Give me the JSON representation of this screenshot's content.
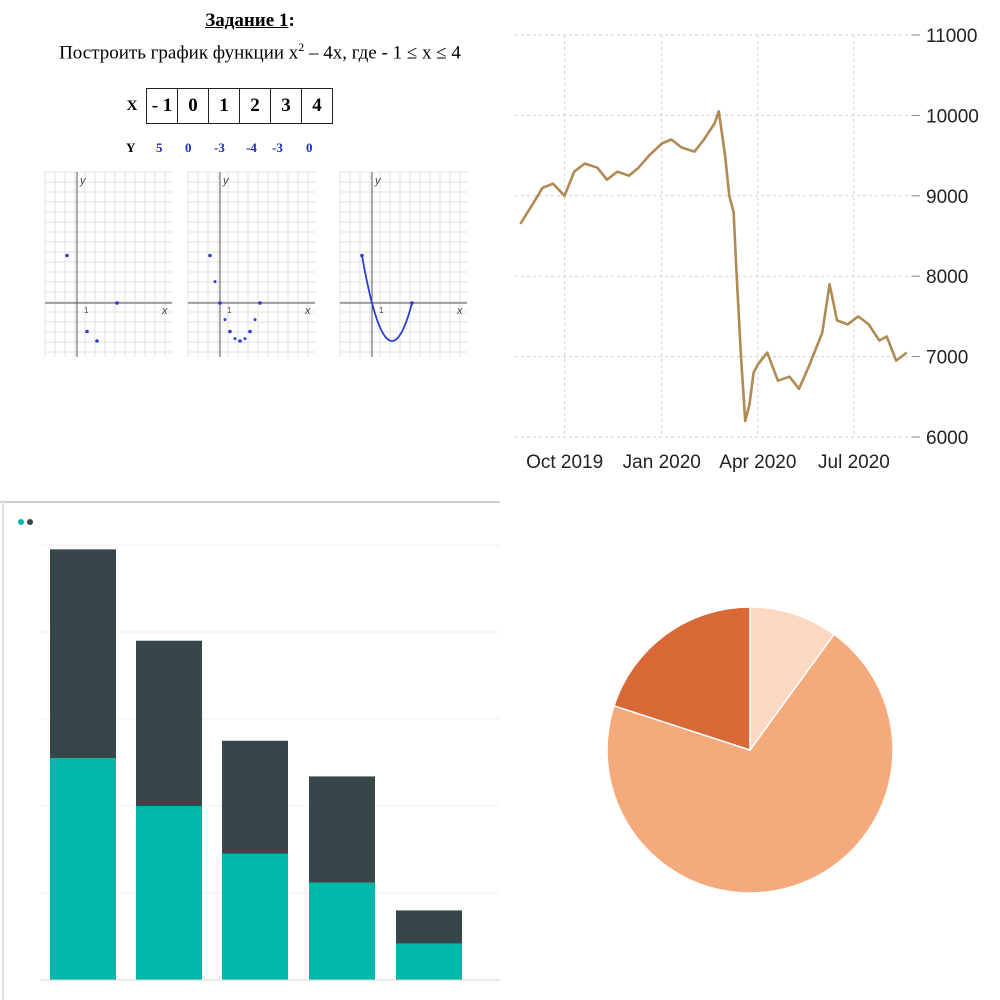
{
  "task": {
    "title": "Задание 1",
    "title_suffix": ":",
    "text_before": "Построить график функции x",
    "exponent": "2",
    "text_after": " – 4x,  где  - 1 ≤ x ≤ 4",
    "x_label": "X",
    "y_label": "Y",
    "x_cells": [
      "- 1",
      "0",
      "1",
      "2",
      "3",
      "4"
    ],
    "y_values": [
      "5",
      "0",
      "-3",
      "-4",
      "-3",
      "0"
    ]
  },
  "small_plots": {
    "axis_x": "x",
    "axis_y": "y",
    "tick_one": "1",
    "point_color": "#2a3fd0"
  },
  "chart_data": [
    {
      "type": "scatter",
      "title": "",
      "x": [
        -1,
        0,
        1,
        2,
        3,
        4
      ],
      "y": [
        5,
        0,
        -3,
        -4,
        -3,
        0
      ],
      "xlabel": "x",
      "ylabel": "y"
    },
    {
      "type": "line",
      "title": "",
      "x_ticks": [
        "Oct 2019",
        "Jan 2020",
        "Apr 2020",
        "Jul 2020"
      ],
      "y_ticks": [
        "11000",
        "10000",
        "9000",
        "8000",
        "7000",
        "6000"
      ],
      "ylim": [
        6000,
        11000
      ],
      "color": "#b08a55",
      "x": [
        "2019-08-20",
        "2019-09-01",
        "2019-09-10",
        "2019-09-20",
        "2019-10-01",
        "2019-10-10",
        "2019-10-20",
        "2019-11-01",
        "2019-11-10",
        "2019-11-20",
        "2019-12-01",
        "2019-12-10",
        "2019-12-20",
        "2020-01-01",
        "2020-01-10",
        "2020-01-20",
        "2020-02-01",
        "2020-02-10",
        "2020-02-20",
        "2020-02-24",
        "2020-03-01",
        "2020-03-05",
        "2020-03-09",
        "2020-03-12",
        "2020-03-16",
        "2020-03-20",
        "2020-03-24",
        "2020-03-28",
        "2020-04-01",
        "2020-04-10",
        "2020-04-20",
        "2020-05-01",
        "2020-05-10",
        "2020-05-20",
        "2020-06-01",
        "2020-06-08",
        "2020-06-15",
        "2020-06-25",
        "2020-07-05",
        "2020-07-15",
        "2020-07-25",
        "2020-08-01",
        "2020-08-10",
        "2020-08-20"
      ],
      "y": [
        8650,
        8900,
        9100,
        9150,
        9000,
        9300,
        9400,
        9350,
        9200,
        9300,
        9250,
        9350,
        9500,
        9650,
        9700,
        9600,
        9550,
        9700,
        9900,
        10050,
        9500,
        9000,
        8800,
        8000,
        7000,
        6200,
        6400,
        6800,
        6900,
        7050,
        6700,
        6750,
        6600,
        6900,
        7300,
        7900,
        7450,
        7400,
        7500,
        7400,
        7200,
        7250,
        6950,
        7050
      ]
    },
    {
      "type": "bar",
      "title": "",
      "stacked": true,
      "categories": [
        "",
        "",
        "",
        "",
        ""
      ],
      "series": [
        {
          "name": "",
          "color": "#01b8aa",
          "values": [
            255,
            200,
            145,
            112,
            42
          ]
        },
        {
          "name": "",
          "color": "#374649",
          "values": [
            240,
            190,
            130,
            122,
            38
          ]
        }
      ]
    },
    {
      "type": "pie",
      "title": "",
      "values": [
        10,
        70,
        20
      ],
      "colors": [
        "#fcd7c2",
        "#f5aa7b",
        "#d86836"
      ]
    }
  ]
}
